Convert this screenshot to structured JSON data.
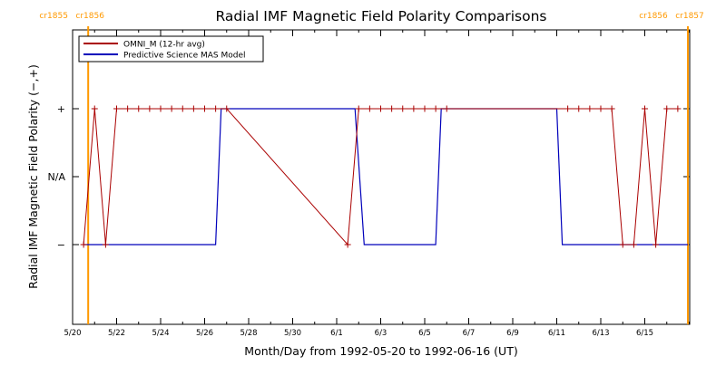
{
  "chart_data": {
    "type": "line",
    "title": "Radial IMF Magnetic Field Polarity Comparisons",
    "xlabel": "Month/Day from 1992-05-20 to 1992-06-16 (UT)",
    "ylabel": "Radial IMF Magnetic Field Polarity (−,+)",
    "xlim": [
      "1992-05-20",
      "1992-06-16"
    ],
    "x_tick_labels": [
      "5/20",
      "5/22",
      "5/24",
      "5/26",
      "5/28",
      "5/30",
      "6/1",
      "6/3",
      "6/5",
      "6/7",
      "6/9",
      "6/11",
      "6/13",
      "6/15"
    ],
    "y_tick_labels": [
      "+",
      "N/A",
      "−"
    ],
    "carrington_markers": [
      {
        "label_left": "cr1855",
        "label_right": "cr1856",
        "date": "1992-05-20 17:00",
        "color": "#ff9900"
      },
      {
        "label_left": "cr1856",
        "label_right": "cr1857",
        "date": "1992-06-16 23:00",
        "color": "#ff9900"
      }
    ],
    "legend": {
      "placement": "top-left"
    },
    "grid": false,
    "series": [
      {
        "name": "OMNI_M (12-hr avg)",
        "color": "#aa0000",
        "markers": "+",
        "points": [
          [
            "1992-05-20 12:00",
            "-"
          ],
          [
            "1992-05-21 00:00",
            "+"
          ],
          [
            "1992-05-21 12:00",
            "-"
          ],
          [
            "1992-05-22 00:00",
            "+"
          ],
          [
            "1992-05-22 12:00",
            "+"
          ],
          [
            "1992-05-23 00:00",
            "+"
          ],
          [
            "1992-05-23 12:00",
            "+"
          ],
          [
            "1992-05-24 00:00",
            "+"
          ],
          [
            "1992-05-24 12:00",
            "+"
          ],
          [
            "1992-05-25 00:00",
            "+"
          ],
          [
            "1992-05-25 12:00",
            "+"
          ],
          [
            "1992-05-26 00:00",
            "+"
          ],
          [
            "1992-05-26 12:00",
            "+"
          ],
          [
            "1992-05-27 00:00",
            "+"
          ],
          [
            "1992-06-01 12:00",
            "-"
          ],
          [
            "1992-06-02 00:00",
            "+"
          ],
          [
            "1992-06-02 12:00",
            "+"
          ],
          [
            "1992-06-03 00:00",
            "+"
          ],
          [
            "1992-06-03 12:00",
            "+"
          ],
          [
            "1992-06-04 00:00",
            "+"
          ],
          [
            "1992-06-04 12:00",
            "+"
          ],
          [
            "1992-06-05 00:00",
            "+"
          ],
          [
            "1992-06-05 12:00",
            "+"
          ],
          [
            "1992-06-06 00:00",
            "+"
          ],
          [
            "1992-06-11 12:00",
            "+"
          ],
          [
            "1992-06-12 00:00",
            "+"
          ],
          [
            "1992-06-12 12:00",
            "+"
          ],
          [
            "1992-06-13 00:00",
            "+"
          ],
          [
            "1992-06-13 12:00",
            "+"
          ],
          [
            "1992-06-14 00:00",
            "-"
          ],
          [
            "1992-06-14 12:00",
            "-"
          ],
          [
            "1992-06-15 00:00",
            "+"
          ],
          [
            "1992-06-15 12:00",
            "-"
          ],
          [
            "1992-06-16 00:00",
            "+"
          ],
          [
            "1992-06-16 12:00",
            "+"
          ]
        ]
      },
      {
        "name": "Predictive Science MAS Model",
        "color": "#0000bb",
        "steps": [
          [
            "1992-05-20 12:00",
            "-"
          ],
          [
            "1992-05-26 12:00",
            "-"
          ],
          [
            "1992-05-26 18:00",
            "+"
          ],
          [
            "1992-06-01 20:00",
            "+"
          ],
          [
            "1992-06-02 06:00",
            "-"
          ],
          [
            "1992-06-05 12:00",
            "-"
          ],
          [
            "1992-06-05 18:00",
            "+"
          ],
          [
            "1992-06-11 00:00",
            "+"
          ],
          [
            "1992-06-11 06:00",
            "-"
          ],
          [
            "1992-06-16 23:00",
            "-"
          ]
        ]
      }
    ]
  }
}
